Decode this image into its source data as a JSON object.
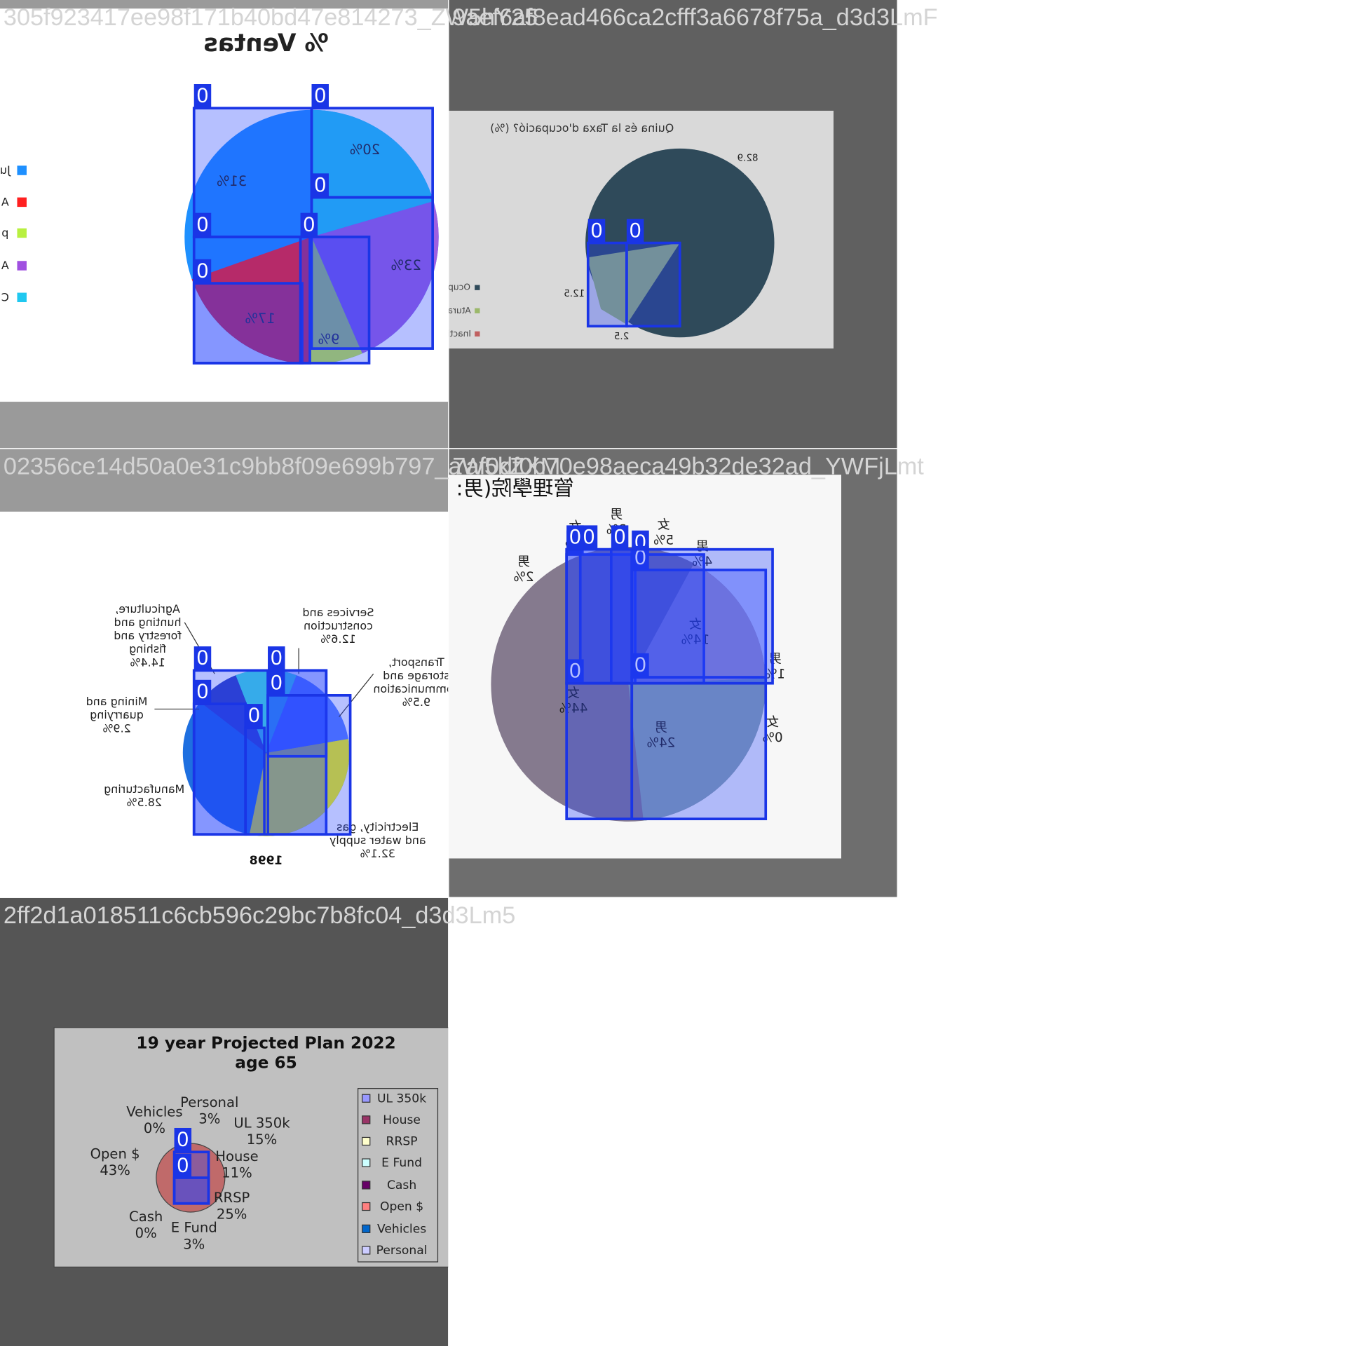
{
  "tiles": [
    {
      "caption": "305f923417ee98f171b40bd47e814273_ZW5hY25",
      "texts": [
        "% Ventas",
        "31%",
        "20%",
        "23%",
        "17%",
        "9%",
        "Ju",
        "A",
        "p",
        "A",
        "C"
      ],
      "box_labels": [
        "0",
        "0",
        "0",
        "0",
        "0",
        "0"
      ]
    },
    {
      "caption": "9aef6af8ead466ca2cfff3a6678f75a_d3d3LmF",
      "texts": [
        "Quina és la Taxa d'ocupació? (%)",
        "82.9",
        "12.5",
        "2.5",
        "Ocup",
        "Atura",
        "Inacti"
      ],
      "box_labels": [
        "0",
        "0"
      ]
    },
    {
      "caption": "02356ce14d50a0e31c9bb8f09e699b797_aW5kZXM",
      "texts": [
        [
          "Agriculture,",
          "hunting and",
          "forestry and",
          "fishing",
          "14.4%"
        ],
        [
          "Services and",
          "construction",
          "12.6%"
        ],
        [
          "Transport,",
          "storage and",
          "communication",
          "9.5%"
        ],
        [
          "Mining and",
          "quarrying",
          "2.9%"
        ],
        [
          "Manufacturing",
          "28.5%"
        ],
        [
          "Electricity, gas",
          "and water supply",
          "32.1%"
        ],
        "1998"
      ],
      "box_labels": [
        "0",
        "0",
        "0",
        "0",
        "0"
      ]
    },
    {
      "caption": "7af0df0b70e98aeca49b32de32ad_YWFjLmt",
      "texts": [
        "管理學院(男:",
        [
          "男",
          "2%"
        ],
        [
          "女",
          "1%"
        ],
        [
          "男",
          "3%"
        ],
        [
          "女",
          "5%"
        ],
        [
          "男",
          "4%"
        ],
        [
          "女",
          "14%"
        ],
        [
          "男",
          "1%"
        ],
        [
          "女",
          "0%"
        ],
        [
          "女",
          "44%"
        ],
        [
          "男",
          "24%"
        ]
      ],
      "box_labels": [
        "0",
        "0",
        "0",
        "0",
        "0",
        "0",
        "0",
        "0"
      ]
    },
    {
      "caption": "2ff2d1a018511c6cb596c29bc7b8fc04_d3d3Lm5",
      "texts": [
        "19 year Projected Plan 2022",
        "age 65",
        [
          "Vehicles",
          "0%"
        ],
        [
          "Personal",
          "3%"
        ],
        [
          "UL 350k",
          "15%"
        ],
        [
          "Open $",
          "43%"
        ],
        [
          "House",
          "11%"
        ],
        [
          "RRSP",
          "25%"
        ],
        [
          "Cash",
          "0%"
        ],
        [
          "E Fund",
          "3%"
        ],
        "UL 350k",
        "House",
        "RRSP",
        "E Fund",
        "Cash",
        "Open $",
        "Vehicles",
        "Personal"
      ],
      "box_labels": [
        "0",
        "0"
      ]
    }
  ]
}
